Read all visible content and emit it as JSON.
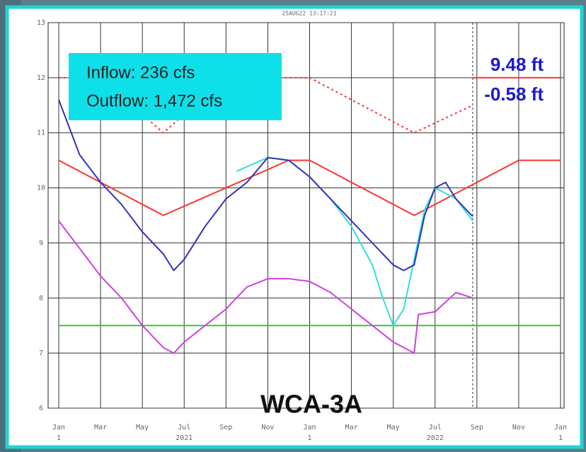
{
  "chart_data": {
    "type": "line",
    "header": "25AUG22 13:17:21",
    "xlim": [
      0,
      24
    ],
    "ylim": [
      6,
      13
    ],
    "yticks": [
      6,
      7,
      8,
      9,
      10,
      11,
      12,
      13
    ],
    "xticks": [
      {
        "value": 0,
        "label": "Jan"
      },
      {
        "value": 2,
        "label": "Mar"
      },
      {
        "value": 4,
        "label": "May"
      },
      {
        "value": 6,
        "label": "Jul"
      },
      {
        "value": 8,
        "label": "Sep"
      },
      {
        "value": 10,
        "label": "Nov"
      },
      {
        "value": 12,
        "label": "Jan"
      },
      {
        "value": 14,
        "label": "Mar"
      },
      {
        "value": 16,
        "label": "May"
      },
      {
        "value": 18,
        "label": "Jul"
      },
      {
        "value": 20,
        "label": "Sep"
      },
      {
        "value": 22,
        "label": "Nov"
      },
      {
        "value": 24,
        "label": "Jan"
      }
    ],
    "xticks2": [
      {
        "value": 0,
        "label": "1"
      },
      {
        "value": 6,
        "label": "2021"
      },
      {
        "value": 12,
        "label": "1"
      },
      {
        "value": 18,
        "label": "2022"
      },
      {
        "value": 24,
        "label": "1"
      }
    ],
    "grid": true,
    "current_x": 19.8,
    "series": [
      {
        "color": "#33cc33",
        "dash": false,
        "x": [
          0,
          24
        ],
        "values": [
          7.5,
          7.5
        ]
      },
      {
        "color": "#ff3333",
        "dash": false,
        "x": [
          0,
          5,
          11,
          12,
          17,
          22,
          24
        ],
        "values": [
          10.5,
          9.5,
          10.5,
          10.5,
          9.5,
          10.5,
          10.5
        ]
      },
      {
        "color": "#ff3333",
        "dash": true,
        "x": [
          0,
          2,
          5,
          8,
          12,
          17,
          19.8
        ],
        "values": [
          12,
          12,
          11,
          12,
          12,
          11,
          11.5
        ]
      },
      {
        "color": "#ff3333",
        "dash": false,
        "x": [
          19.8,
          24
        ],
        "values": [
          12,
          12
        ]
      },
      {
        "color": "#cc44dd",
        "dash": false,
        "x": [
          0,
          1,
          2,
          3,
          4,
          5,
          5.5,
          6,
          7,
          8,
          9,
          10,
          11,
          12,
          13,
          14,
          15,
          16,
          17,
          17.2,
          18,
          19,
          19.8
        ],
        "values": [
          9.4,
          8.9,
          8.4,
          8.0,
          7.5,
          7.1,
          7.0,
          7.2,
          7.5,
          7.8,
          8.2,
          8.35,
          8.35,
          8.3,
          8.1,
          7.8,
          7.5,
          7.2,
          7.0,
          7.7,
          7.75,
          8.1,
          8.0
        ]
      },
      {
        "color": "#33dddd",
        "dash": false,
        "x": [
          8.5,
          10,
          11,
          12,
          13,
          14,
          15,
          15.5,
          16,
          16.5,
          17,
          17.5,
          18,
          19,
          19.8
        ],
        "values": [
          10.3,
          10.55,
          10.5,
          10.2,
          9.8,
          9.3,
          8.6,
          8.0,
          7.5,
          7.8,
          8.7,
          9.6,
          10.0,
          9.8,
          9.4
        ]
      },
      {
        "color": "#3333bb",
        "dash": false,
        "x": [
          0,
          1,
          2,
          3,
          4,
          5,
          5.5,
          6,
          7,
          8,
          9,
          10,
          11,
          12,
          13,
          14,
          15,
          16,
          16.5,
          17,
          17.5,
          18,
          18.5,
          19,
          19.8
        ],
        "values": [
          11.6,
          10.6,
          10.1,
          9.7,
          9.2,
          8.8,
          8.5,
          8.7,
          9.3,
          9.8,
          10.1,
          10.55,
          10.5,
          10.2,
          9.8,
          9.4,
          9.0,
          8.6,
          8.5,
          8.6,
          9.5,
          10.0,
          10.1,
          9.8,
          9.48
        ]
      }
    ],
    "annotations": {
      "inflow": "Inflow: 236 cfs",
      "outflow": "Outflow: 1,472 cfs",
      "stage": "9.48 ft",
      "change": "-0.58 ft",
      "station": "WCA-3A"
    }
  }
}
